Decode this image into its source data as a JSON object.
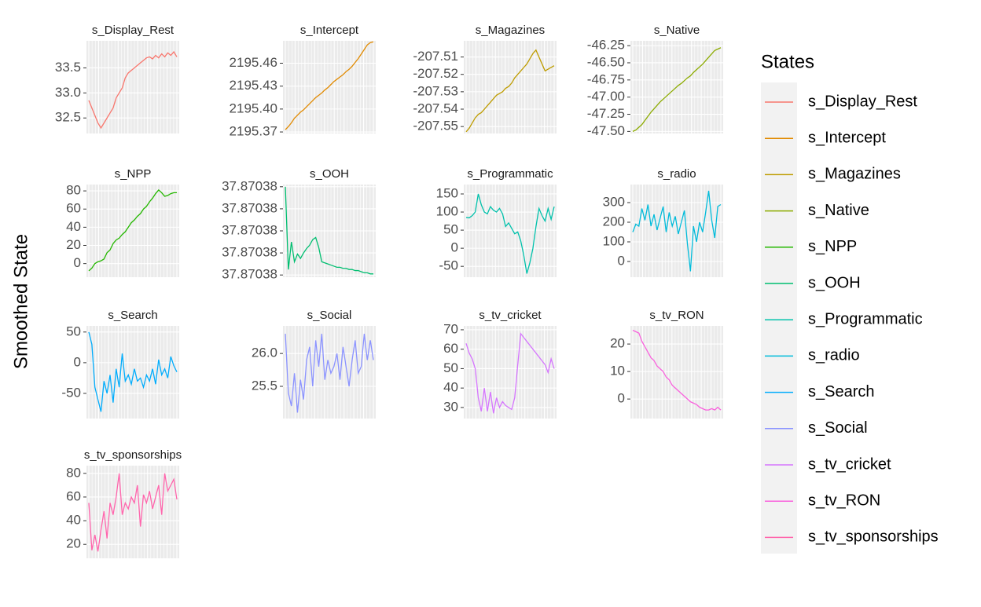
{
  "chart_data": {
    "type": "line",
    "ylabel": "Smoothed State",
    "legend_title": "States",
    "series": [
      {
        "name": "s_Display_Rest",
        "color": "#F8766D",
        "ylim": [
          32.19,
          34.04
        ],
        "yticks": [
          32.5,
          {
            "value": 33,
            "label": "33.0"
          },
          33.5
        ],
        "values": [
          32.85,
          32.7,
          32.55,
          32.4,
          32.3,
          32.4,
          32.5,
          32.6,
          32.7,
          32.9,
          33.0,
          33.1,
          33.3,
          33.4,
          33.45,
          33.5,
          33.55,
          33.6,
          33.65,
          33.7,
          33.72,
          33.68,
          33.75,
          33.7,
          33.78,
          33.72,
          33.8,
          33.75,
          33.82,
          33.72
        ]
      },
      {
        "name": "s_Intercept",
        "color": "#E18A00",
        "ylim": [
          2195.368,
          2195.4893
        ],
        "yticks": [
          2195.37,
          {
            "value": 2195.4,
            "label": "2195.40"
          },
          2195.43,
          2195.46
        ],
        "values": [
          2195.373,
          2195.377,
          2195.382,
          2195.388,
          2195.392,
          2195.396,
          2195.399,
          2195.403,
          2195.407,
          2195.411,
          2195.415,
          2195.418,
          2195.421,
          2195.425,
          2195.428,
          2195.432,
          2195.436,
          2195.439,
          2195.442,
          2195.445,
          2195.449,
          2195.452,
          2195.456,
          2195.461,
          2195.466,
          2195.472,
          2195.478,
          2195.484,
          2195.487,
          2195.488
        ]
      },
      {
        "name": "s_Magazines",
        "color": "#BE9C00",
        "ylim": [
          -207.554,
          -207.5007
        ],
        "yticks": [
          -207.55,
          -207.54,
          -207.53,
          -207.52,
          -207.51
        ],
        "values": [
          -207.553,
          -207.551,
          -207.548,
          -207.545,
          -207.543,
          -207.542,
          -207.54,
          -207.538,
          -207.536,
          -207.534,
          -207.532,
          -207.531,
          -207.53,
          -207.528,
          -207.527,
          -207.525,
          -207.522,
          -207.52,
          -207.518,
          -207.516,
          -207.514,
          -207.511,
          -207.508,
          -207.506,
          -207.51,
          -207.514,
          -207.518,
          -207.517,
          -207.516,
          -207.515
        ]
      },
      {
        "name": "s_Native",
        "color": "#8CAB00",
        "ylim": [
          -47.53,
          -46.18
        ],
        "yticks": [
          {
            "value": -47.5,
            "label": "-47.50"
          },
          -47.25,
          {
            "value": -47,
            "label": "-47.00"
          },
          -46.75,
          {
            "value": -46.5,
            "label": "-46.50"
          },
          -46.25
        ],
        "values": [
          -47.5,
          -47.48,
          -47.44,
          -47.4,
          -47.34,
          -47.28,
          -47.22,
          -47.17,
          -47.12,
          -47.07,
          -47.03,
          -46.99,
          -46.95,
          -46.91,
          -46.87,
          -46.83,
          -46.8,
          -46.76,
          -46.72,
          -46.69,
          -46.64,
          -46.6,
          -46.56,
          -46.52,
          -46.47,
          -46.42,
          -46.37,
          -46.32,
          -46.3,
          -46.28
        ]
      },
      {
        "name": "s_NPP",
        "color": "#24B700",
        "ylim": [
          -15,
          87
        ],
        "yticks": [
          0,
          20,
          40,
          60,
          80
        ],
        "values": [
          -8,
          -5,
          0,
          2,
          3,
          5,
          12,
          15,
          22,
          26,
          28,
          32,
          35,
          40,
          45,
          48,
          52,
          55,
          60,
          63,
          68,
          72,
          77,
          81,
          78,
          74,
          75,
          77,
          78,
          78
        ]
      },
      {
        "name": "s_OOH",
        "color": "#00BE70",
        "ylim": [
          37.8703758,
          37.8703842
        ],
        "yticks": [
          {
            "value": 37.870376,
            "label": "37.87038"
          },
          {
            "value": 37.870378,
            "label": "37.87038"
          },
          {
            "value": 37.87038,
            "label": "37.87038"
          },
          {
            "value": 37.870382,
            "label": "37.87038"
          },
          {
            "value": 37.870384,
            "label": "37.87038"
          }
        ],
        "values": [
          37.870384,
          37.8703765,
          37.870379,
          37.8703772,
          37.8703779,
          37.8703775,
          37.870378,
          37.8703784,
          37.8703787,
          37.8703792,
          37.8703794,
          37.8703785,
          37.8703772,
          37.8703771,
          37.870377,
          37.8703769,
          37.8703768,
          37.8703767,
          37.8703767,
          37.8703766,
          37.8703766,
          37.8703765,
          37.8703765,
          37.8703764,
          37.8703764,
          37.8703763,
          37.8703762,
          37.8703762,
          37.8703761,
          37.8703761
        ]
      },
      {
        "name": "s_Programmatic",
        "color": "#00C1AB",
        "ylim": [
          -80,
          176
        ],
        "yticks": [
          -50,
          0,
          50,
          100,
          150
        ],
        "values": [
          85,
          84,
          90,
          100,
          150,
          120,
          100,
          95,
          115,
          105,
          100,
          110,
          95,
          60,
          70,
          55,
          40,
          45,
          20,
          -20,
          -70,
          -40,
          0,
          60,
          110,
          90,
          75,
          110,
          80,
          115
        ]
      },
      {
        "name": "s_radio",
        "color": "#00BBDA",
        "ylim": [
          -80,
          392
        ],
        "yticks": [
          0,
          100,
          200,
          300
        ],
        "values": [
          150,
          190,
          180,
          270,
          210,
          290,
          180,
          240,
          160,
          220,
          280,
          150,
          250,
          180,
          230,
          140,
          200,
          260,
          90,
          -50,
          180,
          100,
          200,
          150,
          250,
          360,
          210,
          120,
          280,
          290
        ]
      },
      {
        "name": "s_Search",
        "color": "#00ACFC",
        "ylim": [
          -91,
          60
        ],
        "yticks": [
          -50,
          0,
          50
        ],
        "values": [
          50,
          30,
          -40,
          -60,
          -80,
          -30,
          -50,
          -20,
          -65,
          -10,
          -40,
          15,
          -30,
          -20,
          -35,
          -10,
          -30,
          -25,
          -40,
          -20,
          -30,
          -10,
          -35,
          5,
          -20,
          -10,
          -25,
          10,
          -5,
          -15
        ]
      },
      {
        "name": "s_Social",
        "color": "#8B93FF",
        "ylim": [
          25.01,
          26.42
        ],
        "yticks": [
          25.5,
          {
            "value": 26,
            "label": "26.0"
          }
        ],
        "values": [
          26.3,
          25.4,
          25.2,
          25.7,
          25.1,
          25.6,
          25.3,
          25.9,
          26.1,
          25.5,
          26.2,
          25.8,
          26.3,
          25.6,
          25.9,
          25.7,
          25.8,
          26.0,
          25.6,
          26.1,
          25.8,
          25.5,
          25.9,
          26.2,
          25.7,
          25.8,
          26.3,
          25.9,
          26.2,
          25.9
        ]
      },
      {
        "name": "s_tv_cricket",
        "color": "#D575FE",
        "ylim": [
          24.3,
          72
        ],
        "yticks": [
          30,
          40,
          50,
          60,
          70
        ],
        "values": [
          63,
          58,
          55,
          50,
          35,
          28,
          40,
          28,
          38,
          27,
          35,
          30,
          33,
          31,
          30,
          29,
          35,
          52,
          68,
          66,
          64,
          62,
          60,
          58,
          56,
          54,
          52,
          48,
          55,
          50
        ]
      },
      {
        "name": "s_tv_RON",
        "color": "#F962DD",
        "ylim": [
          -7.1,
          26.6
        ],
        "yticks": [
          0,
          10,
          20
        ],
        "values": [
          25,
          24.5,
          24,
          21,
          19,
          17,
          15,
          14,
          12,
          11,
          10,
          8,
          7,
          5,
          4,
          3,
          2,
          1,
          0,
          -1,
          -1.5,
          -2,
          -3,
          -3.5,
          -4,
          -4,
          -3.5,
          -4,
          -3,
          -4
        ]
      },
      {
        "name": "s_tv_sponsorships",
        "color": "#FF65AC",
        "ylim": [
          8.2,
          86.5
        ],
        "yticks": [
          20,
          40,
          60,
          80
        ],
        "values": [
          55,
          15,
          28,
          14,
          32,
          48,
          25,
          55,
          45,
          60,
          80,
          45,
          55,
          50,
          60,
          55,
          70,
          35,
          62,
          55,
          65,
          50,
          60,
          70,
          45,
          80,
          65,
          70,
          75,
          58
        ]
      }
    ]
  }
}
